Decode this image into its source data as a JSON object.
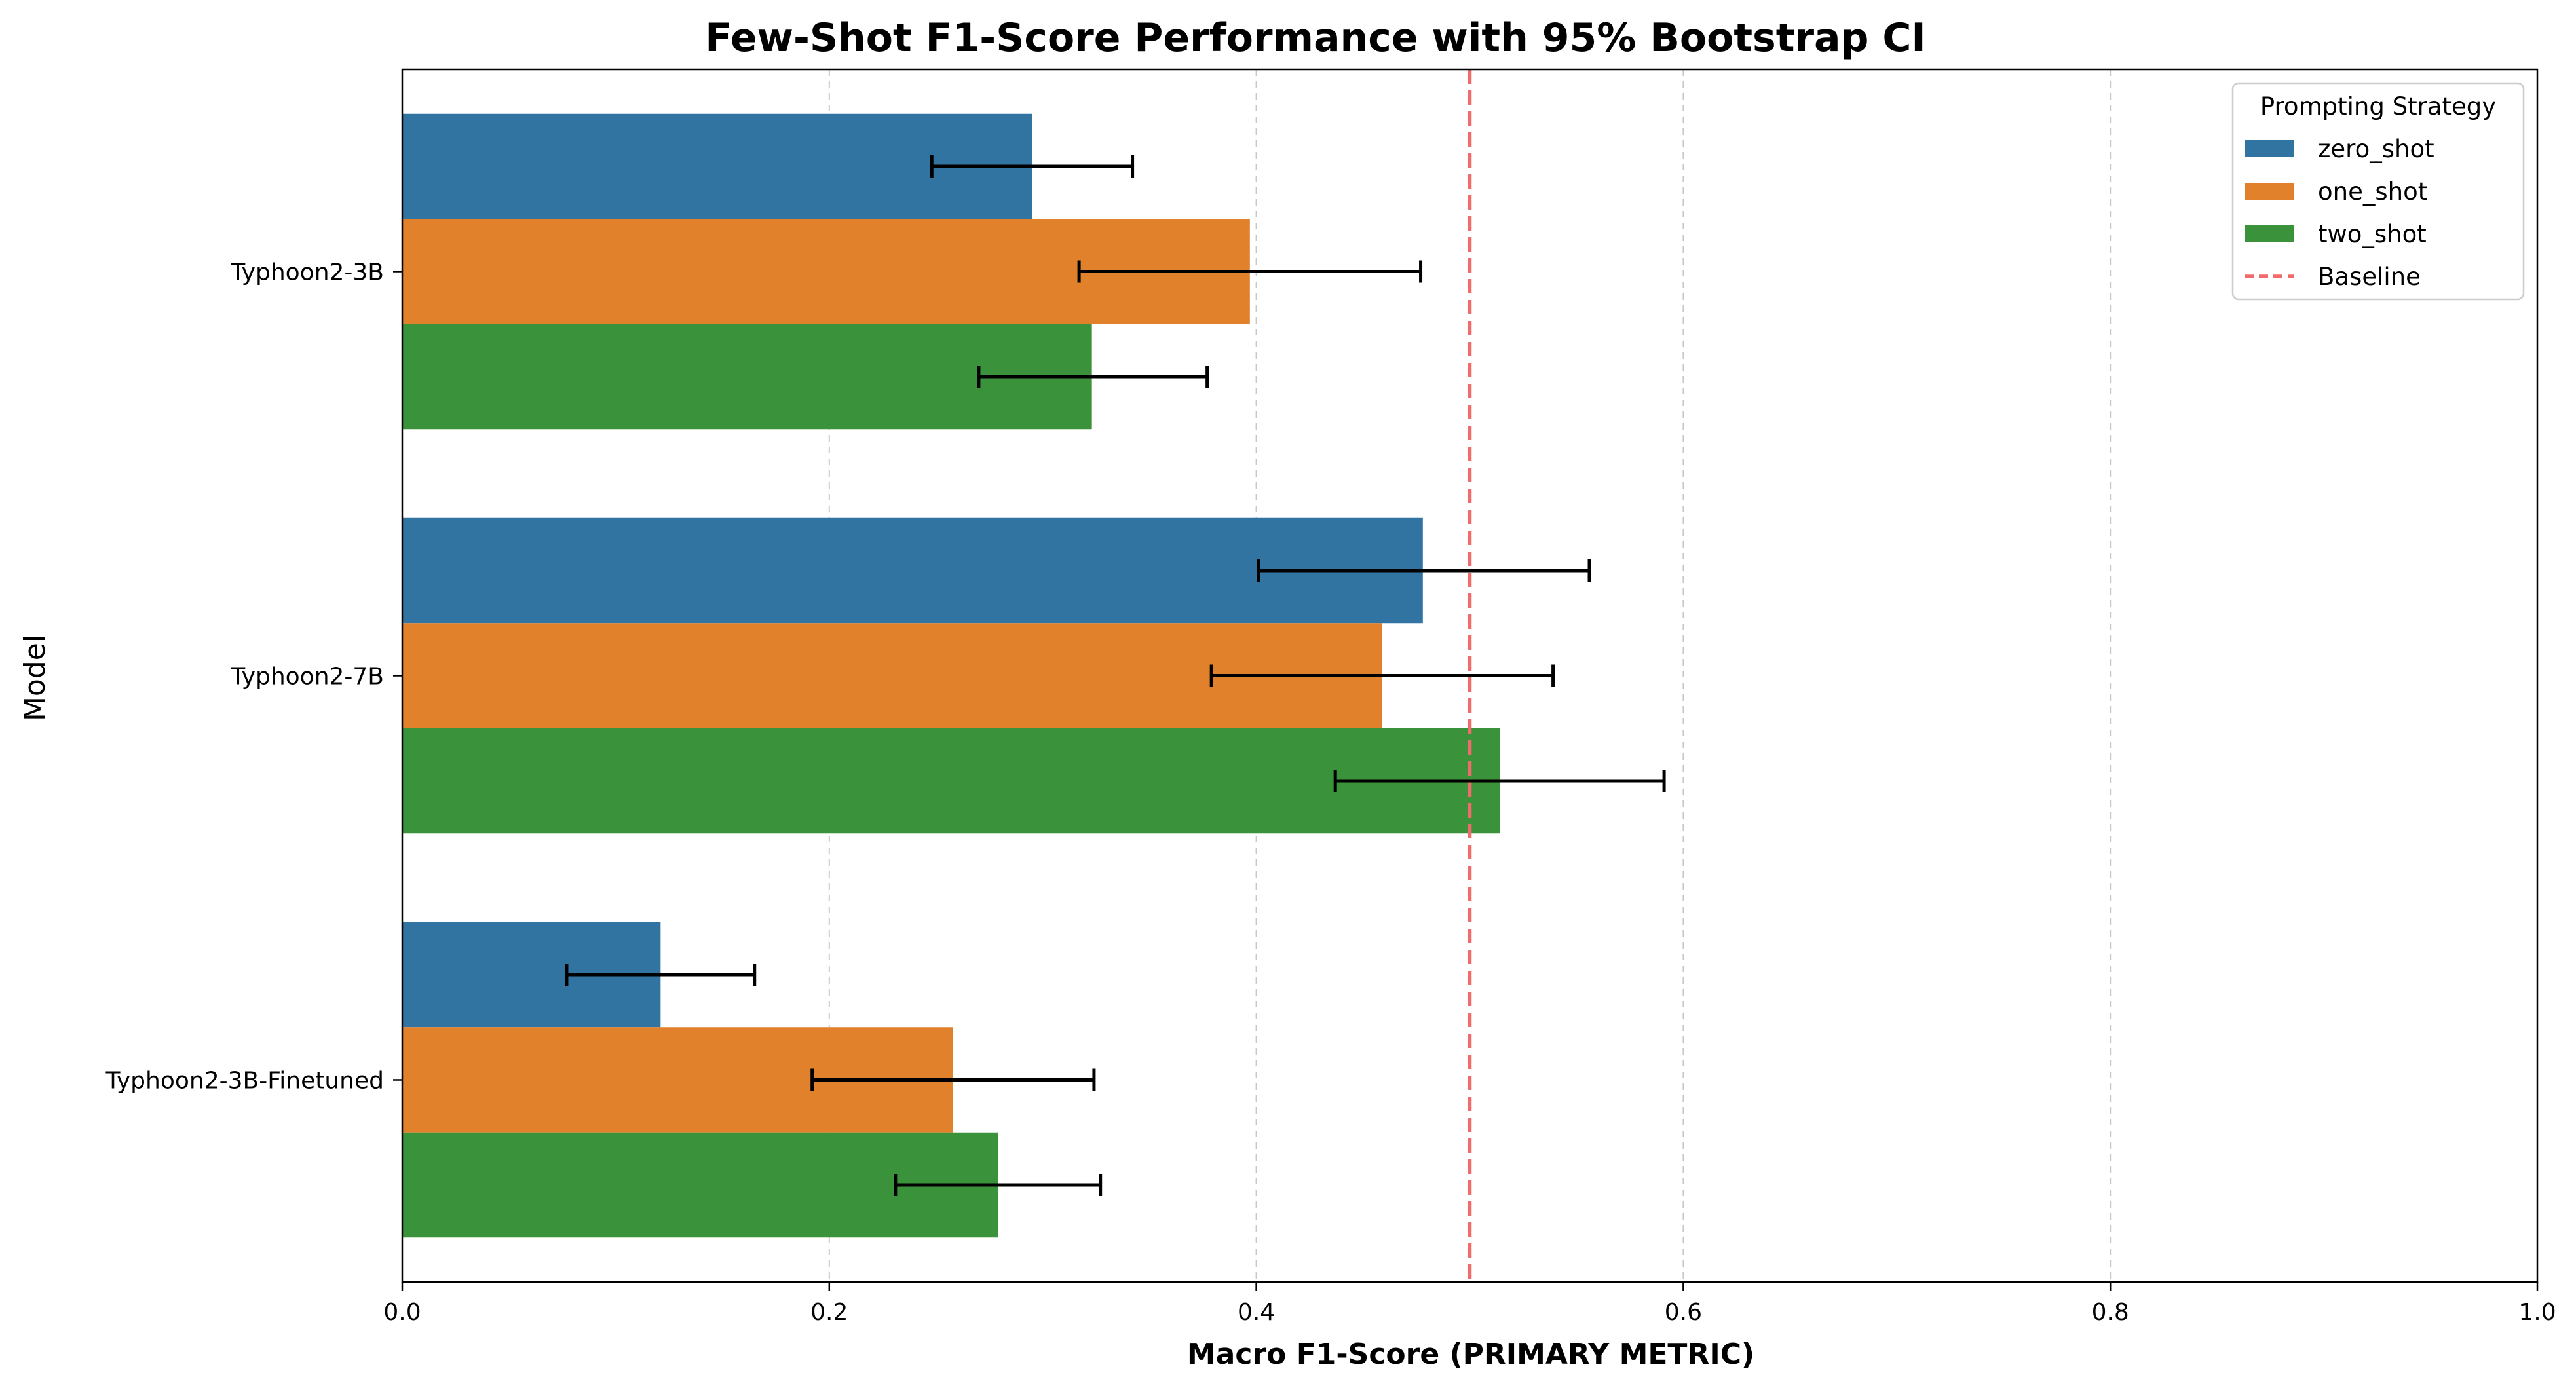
{
  "chart_data": {
    "type": "bar",
    "orientation": "horizontal",
    "title": "Few-Shot F1-Score Performance with 95% Bootstrap CI",
    "xlabel": "Macro F1-Score (PRIMARY METRIC)",
    "ylabel": "Model",
    "xlim": [
      0.0,
      1.0
    ],
    "xticks": [
      "0.0",
      "0.2",
      "0.4",
      "0.6",
      "0.8",
      "1.0"
    ],
    "grid": "x-dashed",
    "categories": [
      "Typhoon2-3B",
      "Typhoon2-7B",
      "Typhoon2-3B-Finetuned"
    ],
    "series": [
      {
        "name": "zero_shot",
        "color": "#3274a1",
        "values": [
          0.295,
          0.478,
          0.121
        ],
        "ci_low": [
          0.248,
          0.401,
          0.077
        ],
        "ci_high": [
          0.342,
          0.556,
          0.165
        ]
      },
      {
        "name": "one_shot",
        "color": "#e1812c",
        "values": [
          0.397,
          0.459,
          0.258
        ],
        "ci_low": [
          0.317,
          0.379,
          0.192
        ],
        "ci_high": [
          0.477,
          0.539,
          0.324
        ]
      },
      {
        "name": "two_shot",
        "color": "#3a923a",
        "values": [
          0.323,
          0.514,
          0.279
        ],
        "ci_low": [
          0.27,
          0.437,
          0.231
        ],
        "ci_high": [
          0.377,
          0.591,
          0.327
        ]
      }
    ],
    "baseline": {
      "name": "Baseline",
      "value": 0.5,
      "color": "#f26b6b"
    },
    "legend": {
      "title": "Prompting Strategy",
      "placement": "top-right"
    }
  }
}
